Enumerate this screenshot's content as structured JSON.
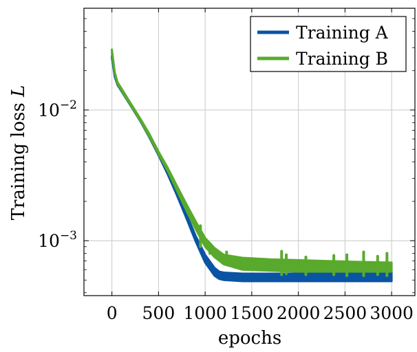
{
  "chart_data": {
    "type": "line",
    "title": "",
    "xlabel": "epochs",
    "ylabel_text": "Training loss ",
    "ylabel_var": "L",
    "xlim": [
      -300,
      3250
    ],
    "ylim": [
      0.00038,
      0.06
    ],
    "yscale": "log",
    "grid": true,
    "legend_position": "top-right",
    "xticks": [
      0,
      500,
      1000,
      1500,
      2000,
      2500,
      3000
    ],
    "xtick_labels": [
      "0",
      "500",
      "1000",
      "1500",
      "2000",
      "2500",
      "3000"
    ],
    "yticks": [
      {
        "base": "10",
        "exp": "−2",
        "value": 0.01
      },
      {
        "base": "10",
        "exp": "−3",
        "value": 0.001
      }
    ],
    "series": [
      {
        "name": "Training A",
        "color": "#0b54a4",
        "x": [
          0,
          30,
          60,
          100,
          200,
          300,
          400,
          500,
          600,
          700,
          800,
          900,
          1000,
          1100,
          1150,
          1200,
          1400,
          1700,
          2000,
          2300,
          2600,
          3000
        ],
        "ymin": [
          0.025,
          0.018,
          0.0155,
          0.014,
          0.0108,
          0.0083,
          0.0062,
          0.0045,
          0.0032,
          0.0022,
          0.00148,
          0.00098,
          0.00068,
          0.00054,
          0.00051,
          0.0005,
          0.00049,
          0.00049,
          0.00049,
          0.00049,
          0.00049,
          0.00049
        ],
        "ymax": [
          0.026,
          0.0185,
          0.016,
          0.0145,
          0.0112,
          0.0086,
          0.0065,
          0.0047,
          0.0034,
          0.0024,
          0.0016,
          0.00108,
          0.00078,
          0.00062,
          0.00058,
          0.00057,
          0.00056,
          0.00056,
          0.00056,
          0.00056,
          0.00056,
          0.00058
        ]
      },
      {
        "name": "Training B",
        "color": "#59aa2c",
        "x": [
          0,
          30,
          60,
          100,
          200,
          300,
          400,
          500,
          600,
          700,
          800,
          900,
          1000,
          1100,
          1200,
          1400,
          1700,
          2000,
          2300,
          2600,
          3000
        ],
        "ymin": [
          0.027,
          0.019,
          0.0158,
          0.0142,
          0.0109,
          0.0084,
          0.0063,
          0.0046,
          0.0034,
          0.0024,
          0.0017,
          0.00122,
          0.0009,
          0.00075,
          0.00066,
          0.0006,
          0.00059,
          0.00058,
          0.00058,
          0.00058,
          0.00058
        ],
        "ymax": [
          0.029,
          0.0195,
          0.0163,
          0.0147,
          0.0113,
          0.0087,
          0.0066,
          0.0048,
          0.0036,
          0.0026,
          0.0019,
          0.0014,
          0.00105,
          0.00088,
          0.00078,
          0.00074,
          0.00072,
          0.00071,
          0.0007,
          0.00069,
          0.00068
        ]
      }
    ],
    "spikes": [
      {
        "series": "Training B",
        "x": 950,
        "ymin": 0.0009,
        "ymax": 0.0013
      },
      {
        "series": "Training B",
        "x": 1050,
        "ymin": 0.0008,
        "ymax": 0.00095
      },
      {
        "series": "Training B",
        "x": 1230,
        "ymin": 0.00066,
        "ymax": 0.00082
      },
      {
        "series": "Training B",
        "x": 1820,
        "ymin": 0.00055,
        "ymax": 0.00083
      },
      {
        "series": "Training B",
        "x": 1870,
        "ymin": 0.00056,
        "ymax": 0.00078
      },
      {
        "series": "Training B",
        "x": 2080,
        "ymin": 0.00055,
        "ymax": 0.00075
      },
      {
        "series": "Training B",
        "x": 2380,
        "ymin": 0.00055,
        "ymax": 0.00077
      },
      {
        "series": "Training B",
        "x": 2520,
        "ymin": 0.00054,
        "ymax": 0.00078
      },
      {
        "series": "Training B",
        "x": 2700,
        "ymin": 0.00054,
        "ymax": 0.00082
      },
      {
        "series": "Training B",
        "x": 2850,
        "ymin": 0.00055,
        "ymax": 0.00076
      },
      {
        "series": "Training B",
        "x": 2950,
        "ymin": 0.00054,
        "ymax": 0.0008
      }
    ]
  }
}
